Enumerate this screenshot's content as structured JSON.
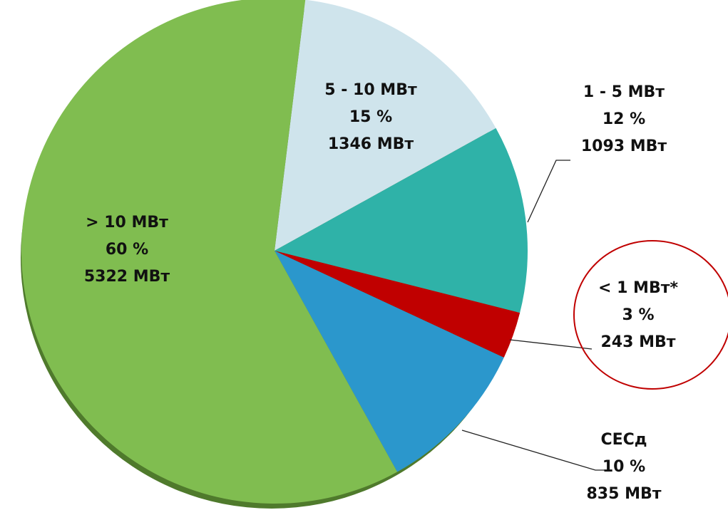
{
  "chart_data": {
    "type": "pie",
    "categories": [
      "5 - 10 МВт",
      "1 - 5 МВт",
      "< 1 МВт*",
      "СЕСд",
      "> 10 МВт"
    ],
    "values": [
      15,
      12,
      3,
      10,
      60
    ],
    "value_labels": [
      "15 %",
      "12 %",
      "3 %",
      "10 %",
      "60 %"
    ],
    "power": [
      1346,
      1093,
      243,
      835,
      5322
    ],
    "power_labels": [
      "1346 МВт",
      "1093 МВт",
      "243 МВт",
      "835 МВт",
      "5322 МВт"
    ],
    "colors": [
      "#cfe4ec",
      "#2fb2a8",
      "#c00000",
      "#2b97cc",
      "#80bd50"
    ]
  }
}
